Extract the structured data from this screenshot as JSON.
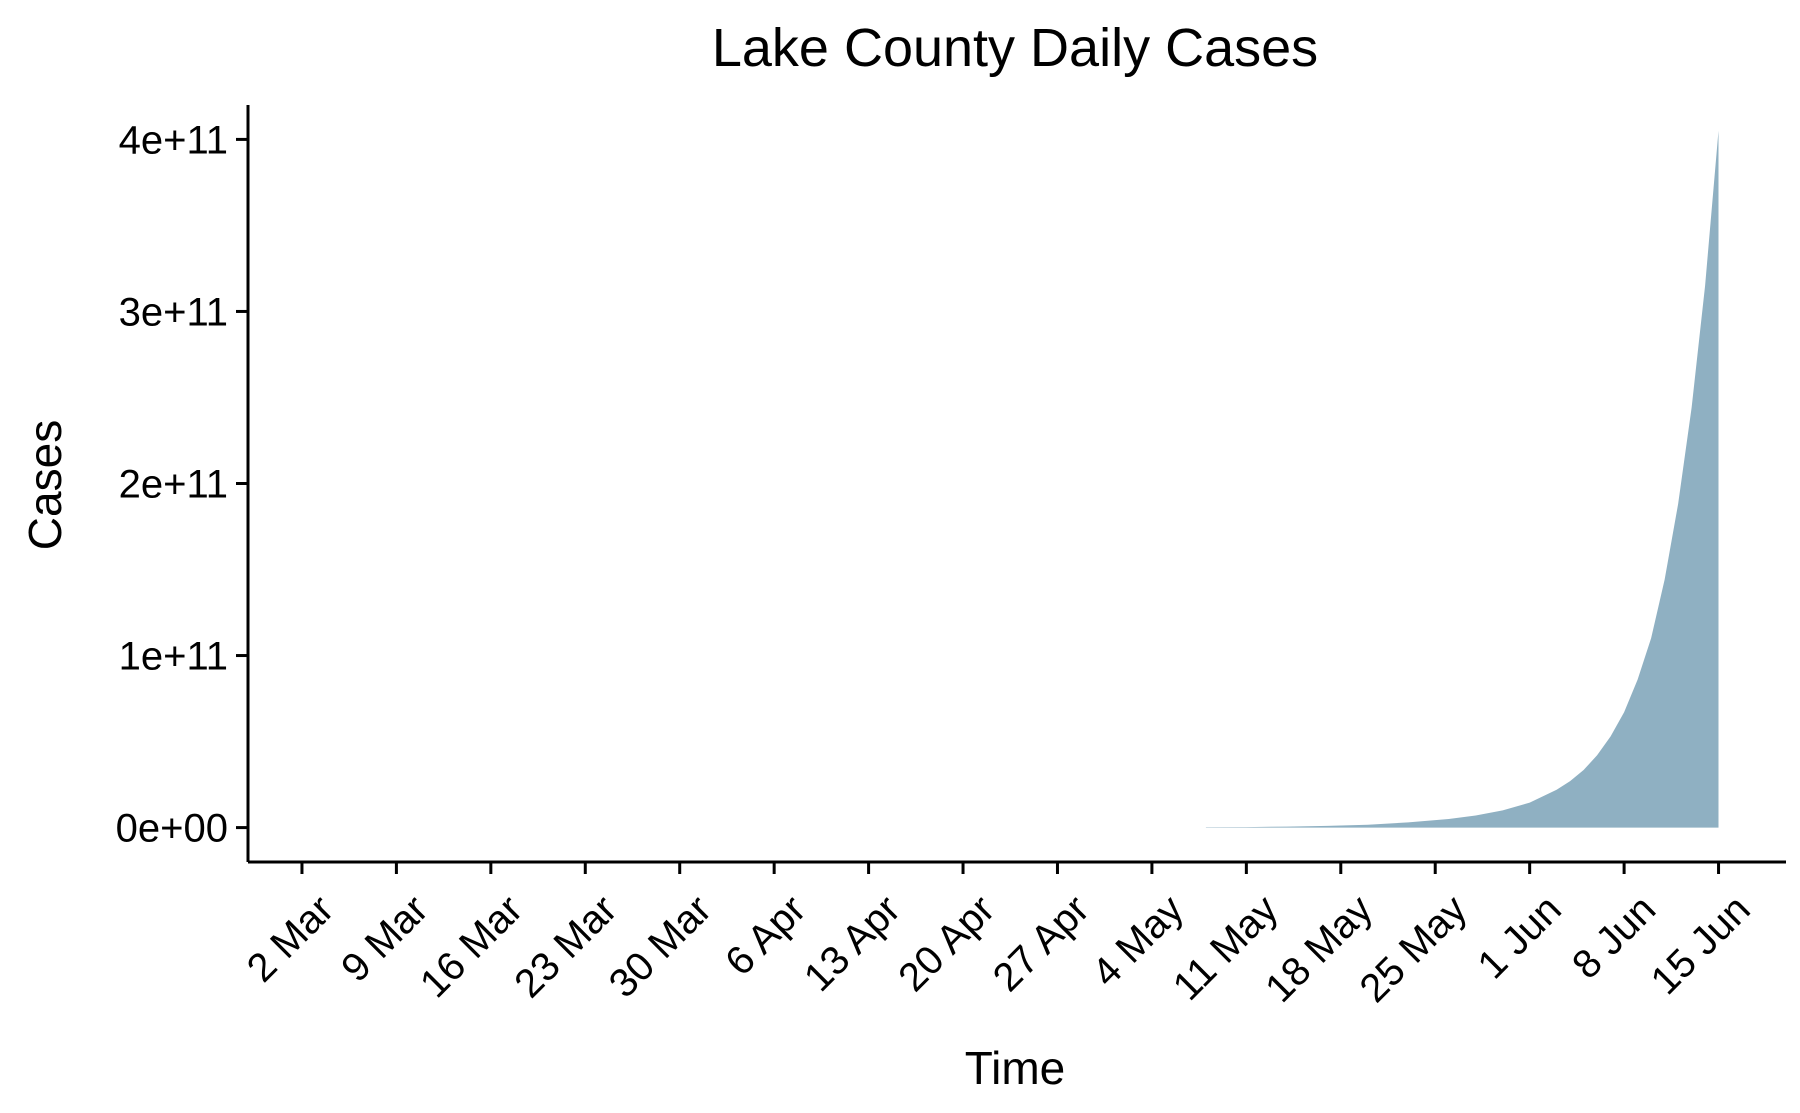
{
  "chart_data": {
    "type": "area",
    "title": "Lake County Daily Cases",
    "xlabel": "Time",
    "ylabel": "Cases",
    "x_tick_labels": [
      "2 Mar",
      "9 Mar",
      "16 Mar",
      "23 Mar",
      "30 Mar",
      "6 Apr",
      "13 Apr",
      "20 Apr",
      "27 Apr",
      "4 May",
      "11 May",
      "18 May",
      "25 May",
      "1 Jun",
      "8 Jun",
      "15 Jun"
    ],
    "x_tick_dates": [
      "2020-03-02",
      "2020-03-09",
      "2020-03-16",
      "2020-03-23",
      "2020-03-30",
      "2020-04-06",
      "2020-04-13",
      "2020-04-20",
      "2020-04-27",
      "2020-05-04",
      "2020-05-11",
      "2020-05-18",
      "2020-05-25",
      "2020-06-01",
      "2020-06-08",
      "2020-06-15"
    ],
    "xlim": [
      "2020-02-27",
      "2020-06-20"
    ],
    "y_ticks": [
      0,
      100000000000,
      200000000000,
      300000000000,
      400000000000
    ],
    "y_tick_labels": [
      "0e+00",
      "1e+11",
      "2e+11",
      "3e+11",
      "4e+11"
    ],
    "ylim": [
      -20000000000,
      420000000000
    ],
    "grid": false,
    "legend": "none",
    "fill_color": "#8fb0c2",
    "series": [
      {
        "x": [
          "2020-05-08",
          "2020-05-11",
          "2020-05-14",
          "2020-05-17",
          "2020-05-20",
          "2020-05-23",
          "2020-05-26",
          "2020-05-28",
          "2020-05-30",
          "2020-06-01",
          "2020-06-03",
          "2020-06-04",
          "2020-06-05",
          "2020-06-06",
          "2020-06-07",
          "2020-06-08",
          "2020-06-09",
          "2020-06-10",
          "2020-06-11",
          "2020-06-12",
          "2020-06-13",
          "2020-06-14",
          "2020-06-15"
        ],
        "values": [
          150000000,
          300000000,
          600000000,
          1000000000,
          1700000000,
          3000000000,
          5000000000,
          7000000000,
          10000000000,
          14500000000,
          22000000000,
          27000000000,
          33500000000,
          42000000000,
          53000000000,
          67000000000,
          86000000000,
          110000000000,
          144000000000,
          188000000000,
          244000000000,
          315000000000,
          405000000000
        ]
      }
    ]
  }
}
